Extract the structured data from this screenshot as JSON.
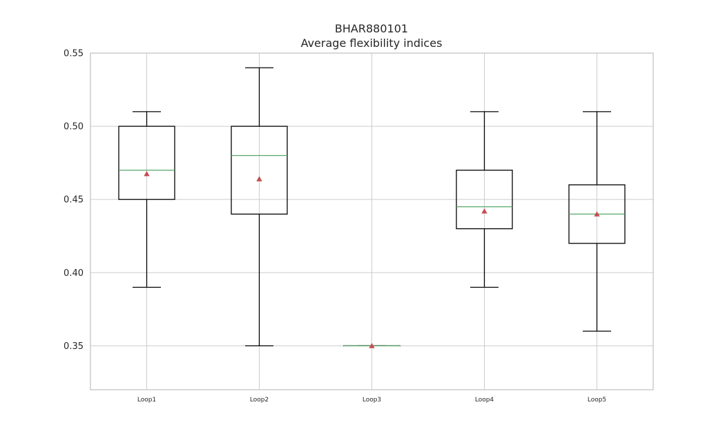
{
  "chart_data": {
    "type": "box",
    "title_lines": [
      "BHAR880101",
      "Average flexibility indices"
    ],
    "categories": [
      "Loop1",
      "Loop2",
      "Loop3",
      "Loop4",
      "Loop5"
    ],
    "ylim": [
      0.32,
      0.55
    ],
    "yticks": [
      0.35,
      0.4,
      0.45,
      0.5,
      0.55
    ],
    "ytick_labels": [
      "0.35",
      "0.40",
      "0.45",
      "0.50",
      "0.55"
    ],
    "grid": true,
    "boxes": [
      {
        "label": "Loop1",
        "whisker_low": 0.39,
        "q1": 0.45,
        "median": 0.47,
        "q3": 0.5,
        "whisker_high": 0.51,
        "mean": 0.4675
      },
      {
        "label": "Loop2",
        "whisker_low": 0.35,
        "q1": 0.44,
        "median": 0.48,
        "q3": 0.5,
        "whisker_high": 0.54,
        "mean": 0.464
      },
      {
        "label": "Loop3",
        "whisker_low": 0.35,
        "q1": 0.35,
        "median": 0.35,
        "q3": 0.35,
        "whisker_high": 0.35,
        "mean": 0.35
      },
      {
        "label": "Loop4",
        "whisker_low": 0.39,
        "q1": 0.43,
        "median": 0.445,
        "q3": 0.47,
        "whisker_high": 0.51,
        "mean": 0.442
      },
      {
        "label": "Loop5",
        "whisker_low": 0.36,
        "q1": 0.42,
        "median": 0.44,
        "q3": 0.46,
        "whisker_high": 0.51,
        "mean": 0.44
      }
    ],
    "colors": {
      "box": "#000000",
      "median": "#55a868",
      "mean": "#c44e52",
      "grid": "#cccccc",
      "frame": "#cccccc"
    }
  }
}
